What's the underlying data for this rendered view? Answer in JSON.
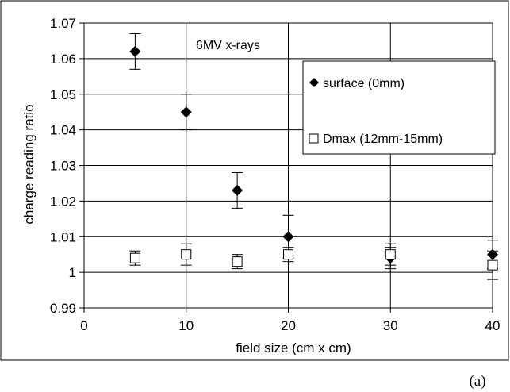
{
  "chart_data": {
    "type": "scatter",
    "title": "",
    "annotation": "6MV x-rays",
    "xlabel": "field size (cm x cm)",
    "ylabel": "charge reading ratio",
    "xlim": [
      0,
      40
    ],
    "ylim": [
      0.99,
      1.07
    ],
    "x_ticks": [
      0,
      10,
      20,
      30,
      40
    ],
    "x_tick_labels": [
      "0",
      "10",
      "20",
      "30",
      "40"
    ],
    "y_ticks": [
      0.99,
      1,
      1.01,
      1.02,
      1.03,
      1.04,
      1.05,
      1.06,
      1.07
    ],
    "y_tick_labels": [
      "0.99",
      "1",
      "1.01",
      "1.02",
      "1.03",
      "1.04",
      "1.05",
      "1.06",
      "1.07"
    ],
    "grid": true,
    "legend_position": "right",
    "series": [
      {
        "name": "surface (0mm)",
        "marker": "diamond-filled",
        "color": "#000000",
        "x": [
          5,
          10,
          15,
          20,
          30,
          40
        ],
        "y": [
          1.062,
          1.045,
          1.023,
          1.01,
          1.004,
          1.005
        ],
        "error": [
          0.005,
          0.005,
          0.005,
          0.006,
          0.003,
          0.004
        ]
      },
      {
        "name": "Dmax (12mm-15mm)",
        "marker": "square-open",
        "color": "#000000",
        "x": [
          5,
          10,
          15,
          20,
          30,
          40
        ],
        "y": [
          1.004,
          1.005,
          1.003,
          1.005,
          1.005,
          1.002
        ],
        "error": [
          0.002,
          0.003,
          0.002,
          0.002,
          0.003,
          0.004
        ]
      }
    ]
  },
  "caption": "(a)"
}
